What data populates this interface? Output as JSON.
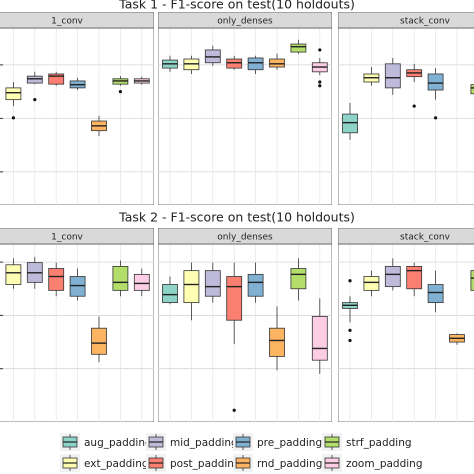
{
  "chart_data": [
    {
      "type": "boxplot",
      "title": "Task 1 - F1-score on test(10 holdouts)",
      "categories": [
        "aug_padding",
        "ext_padding",
        "mid_padding",
        "post_padding",
        "pre_padding",
        "rnd_padding",
        "strf_padding",
        "zoom_padding"
      ],
      "colors": [
        "#8dd3c7",
        "#ffffb3",
        "#bebada",
        "#fb8072",
        "#80b1d3",
        "#fdb462",
        "#b3de69",
        "#fccde5"
      ],
      "ylim": [
        0.638,
        0.969
      ],
      "yticks": [
        0.7,
        0.8,
        0.9
      ],
      "grid": true,
      "panels": [
        {
          "name": "1_conv",
          "boxes": [
            null,
            [
              0.823,
              0.835,
              0.848,
              0.857,
              0.868
            ],
            [
              0.864,
              0.866,
              0.874,
              0.879,
              0.887
            ],
            [
              0.861,
              0.864,
              0.879,
              0.883,
              0.887
            ],
            [
              0.853,
              0.857,
              0.863,
              0.87,
              0.876
            ],
            [
              0.767,
              0.777,
              0.786,
              0.795,
              0.805
            ],
            [
              0.861,
              0.864,
              0.87,
              0.874,
              0.879
            ],
            [
              0.863,
              0.866,
              0.87,
              0.874,
              0.878
            ]
          ],
          "outliers": [
            [],
            [
              0.801
            ],
            [
              0.835
            ],
            [],
            [],
            [],
            [
              0.85
            ],
            []
          ]
        },
        {
          "name": "only_denses",
          "boxes": [
            [
              0.887,
              0.894,
              0.902,
              0.909,
              0.917
            ],
            [
              0.883,
              0.891,
              0.902,
              0.911,
              0.917
            ],
            [
              0.898,
              0.904,
              0.915,
              0.928,
              0.936
            ],
            [
              0.891,
              0.894,
              0.904,
              0.911,
              0.917
            ],
            [
              0.883,
              0.891,
              0.904,
              0.913,
              0.917
            ],
            [
              0.891,
              0.896,
              0.902,
              0.911,
              0.921
            ],
            [
              0.921,
              0.924,
              0.934,
              0.939,
              0.947
            ],
            [
              0.881,
              0.887,
              0.896,
              0.904,
              0.913
            ]
          ],
          "outliers": [
            [],
            [],
            [],
            [],
            [],
            [],
            [],
            [
              0.928,
              0.868,
              0.861
            ]
          ]
        },
        {
          "name": "stack_conv",
          "boxes": [
            [
              0.76,
              0.773,
              0.792,
              0.808,
              0.829
            ],
            [
              0.861,
              0.868,
              0.876,
              0.883,
              0.896
            ],
            [
              0.844,
              0.857,
              0.876,
              0.902,
              0.913
            ],
            [
              0.868,
              0.878,
              0.885,
              0.891,
              0.902
            ],
            [
              0.835,
              0.853,
              0.866,
              0.883,
              0.894
            ],
            null,
            [
              0.836,
              0.846,
              0.857,
              0.863,
              0.88
            ],
            null
          ],
          "outliers": [
            [],
            [],
            [],
            [
              0.823
            ],
            [
              0.801
            ],
            [],
            [],
            []
          ]
        }
      ]
    },
    {
      "type": "boxplot",
      "title": "Task 2 - F1-score on test(10 holdouts)",
      "ylim": [
        0.6,
        0.934
      ],
      "yticks": [
        0.7,
        0.8,
        0.9
      ],
      "grid": true,
      "panels": [
        {
          "name": "1_conv",
          "boxes": [
            null,
            [
              0.85,
              0.858,
              0.88,
              0.895,
              0.907
            ],
            [
              0.85,
              0.862,
              0.88,
              0.899,
              0.91
            ],
            [
              0.836,
              0.847,
              0.873,
              0.888,
              0.899
            ],
            [
              0.828,
              0.836,
              0.856,
              0.873,
              0.888
            ],
            [
              0.712,
              0.727,
              0.748,
              0.776,
              0.798
            ],
            [
              0.836,
              0.847,
              0.862,
              0.892,
              0.903
            ],
            [
              0.836,
              0.847,
              0.86,
              0.877,
              0.888
            ]
          ],
          "outliers": [
            [],
            [],
            [],
            [],
            [],
            [],
            [],
            []
          ]
        },
        {
          "name": "only_denses",
          "boxes": [
            [
              0.821,
              0.824,
              0.839,
              0.858,
              0.873
            ],
            [
              0.791,
              0.824,
              0.858,
              0.884,
              0.899
            ],
            [
              0.824,
              0.836,
              0.854,
              0.884,
              0.899
            ],
            [
              0.746,
              0.791,
              0.854,
              0.873,
              0.899
            ],
            [
              0.824,
              0.836,
              0.862,
              0.877,
              0.899
            ],
            [
              0.697,
              0.723,
              0.753,
              0.776,
              0.817
            ],
            [
              0.828,
              0.85,
              0.877,
              0.888,
              0.907
            ],
            [
              0.69,
              0.716,
              0.738,
              0.798,
              0.832
            ]
          ],
          "outliers": [
            [],
            [],
            [],
            [
              0.622
            ],
            [],
            [],
            [],
            []
          ]
        },
        {
          "name": "stack_conv",
          "boxes": [
            [
              0.787,
              0.813,
              0.819,
              0.824,
              0.836
            ],
            [
              0.836,
              0.847,
              0.862,
              0.873,
              0.884
            ],
            [
              0.847,
              0.854,
              0.877,
              0.892,
              0.907
            ],
            [
              0.836,
              0.85,
              0.884,
              0.892,
              0.899
            ],
            [
              0.806,
              0.824,
              0.843,
              0.858,
              0.884
            ],
            [
              0.745,
              0.75,
              0.757,
              0.764,
              0.766
            ],
            [
              0.836,
              0.847,
              0.87,
              0.884,
              0.899
            ],
            null
          ],
          "outliers": [
            [
              0.865,
              0.772,
              0.753
            ],
            [],
            [],
            [],
            [],
            [],
            [],
            []
          ]
        }
      ]
    }
  ]
}
